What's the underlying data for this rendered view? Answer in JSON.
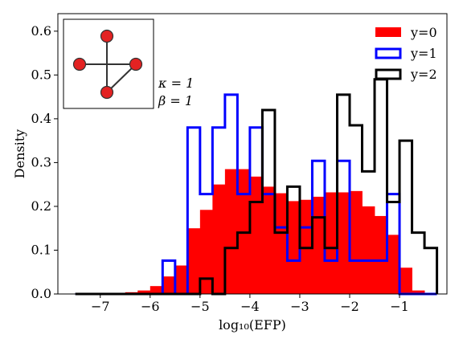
{
  "chart_data": {
    "type": "histogram",
    "xlabel": "log₁₀(EFP)",
    "ylabel": "Density",
    "xlim": [
      -7.85,
      -0.05
    ],
    "ylim": [
      0,
      0.64
    ],
    "xticks": [
      {
        "value": -7,
        "label": "−7"
      },
      {
        "value": -6,
        "label": "−6"
      },
      {
        "value": -5,
        "label": "−5"
      },
      {
        "value": -4,
        "label": "−4"
      },
      {
        "value": -3,
        "label": "−3"
      },
      {
        "value": -2,
        "label": "−2"
      },
      {
        "value": -1,
        "label": "−1"
      }
    ],
    "yticks": [
      {
        "value": 0.0,
        "label": "0.0"
      },
      {
        "value": 0.1,
        "label": "0.1"
      },
      {
        "value": 0.2,
        "label": "0.2"
      },
      {
        "value": 0.3,
        "label": "0.3"
      },
      {
        "value": 0.4,
        "label": "0.4"
      },
      {
        "value": 0.5,
        "label": "0.5"
      },
      {
        "value": 0.6,
        "label": "0.6"
      }
    ],
    "grid": false,
    "legend_position": "top-right",
    "bin_edges": [
      -7.5,
      -7.25,
      -7.0,
      -6.75,
      -6.5,
      -6.25,
      -6.0,
      -5.75,
      -5.5,
      -5.25,
      -5.0,
      -4.75,
      -4.5,
      -4.25,
      -4.0,
      -3.75,
      -3.5,
      -3.25,
      -3.0,
      -2.75,
      -2.5,
      -2.25,
      -2.0,
      -1.75,
      -1.5,
      -1.25,
      -1.0,
      -0.75,
      -0.5,
      -0.25
    ],
    "series": [
      {
        "name": "y=0",
        "style": "filled",
        "color": "#ff0000",
        "values": [
          0.001,
          0.001,
          0.001,
          0.002,
          0.004,
          0.008,
          0.018,
          0.04,
          0.065,
          0.15,
          0.192,
          0.25,
          0.285,
          0.285,
          0.268,
          0.245,
          0.23,
          0.212,
          0.215,
          0.222,
          0.232,
          0.232,
          0.235,
          0.2,
          0.178,
          0.135,
          0.06,
          0.008,
          0.0
        ]
      },
      {
        "name": "y=1",
        "style": "step",
        "color": "#0000ff",
        "values": [
          0.0,
          0.0,
          0.0,
          0.0,
          0.0,
          0.0,
          0.0,
          0.076,
          0.0,
          0.38,
          0.228,
          0.38,
          0.455,
          0.228,
          0.38,
          0.228,
          0.152,
          0.076,
          0.152,
          0.304,
          0.076,
          0.304,
          0.076,
          0.076,
          0.076,
          0.228,
          0.0,
          0.0,
          0.0
        ]
      },
      {
        "name": "y=2",
        "style": "step",
        "color": "#000000",
        "values": [
          0.0,
          0.0,
          0.0,
          0.0,
          0.0,
          0.0,
          0.0,
          0.0,
          0.0,
          0.0,
          0.035,
          0.0,
          0.105,
          0.14,
          0.21,
          0.42,
          0.14,
          0.245,
          0.105,
          0.175,
          0.105,
          0.455,
          0.385,
          0.28,
          0.49,
          0.21,
          0.35,
          0.14,
          0.105
        ]
      }
    ],
    "annotations": [
      "κ = 1",
      "β = 1"
    ]
  }
}
